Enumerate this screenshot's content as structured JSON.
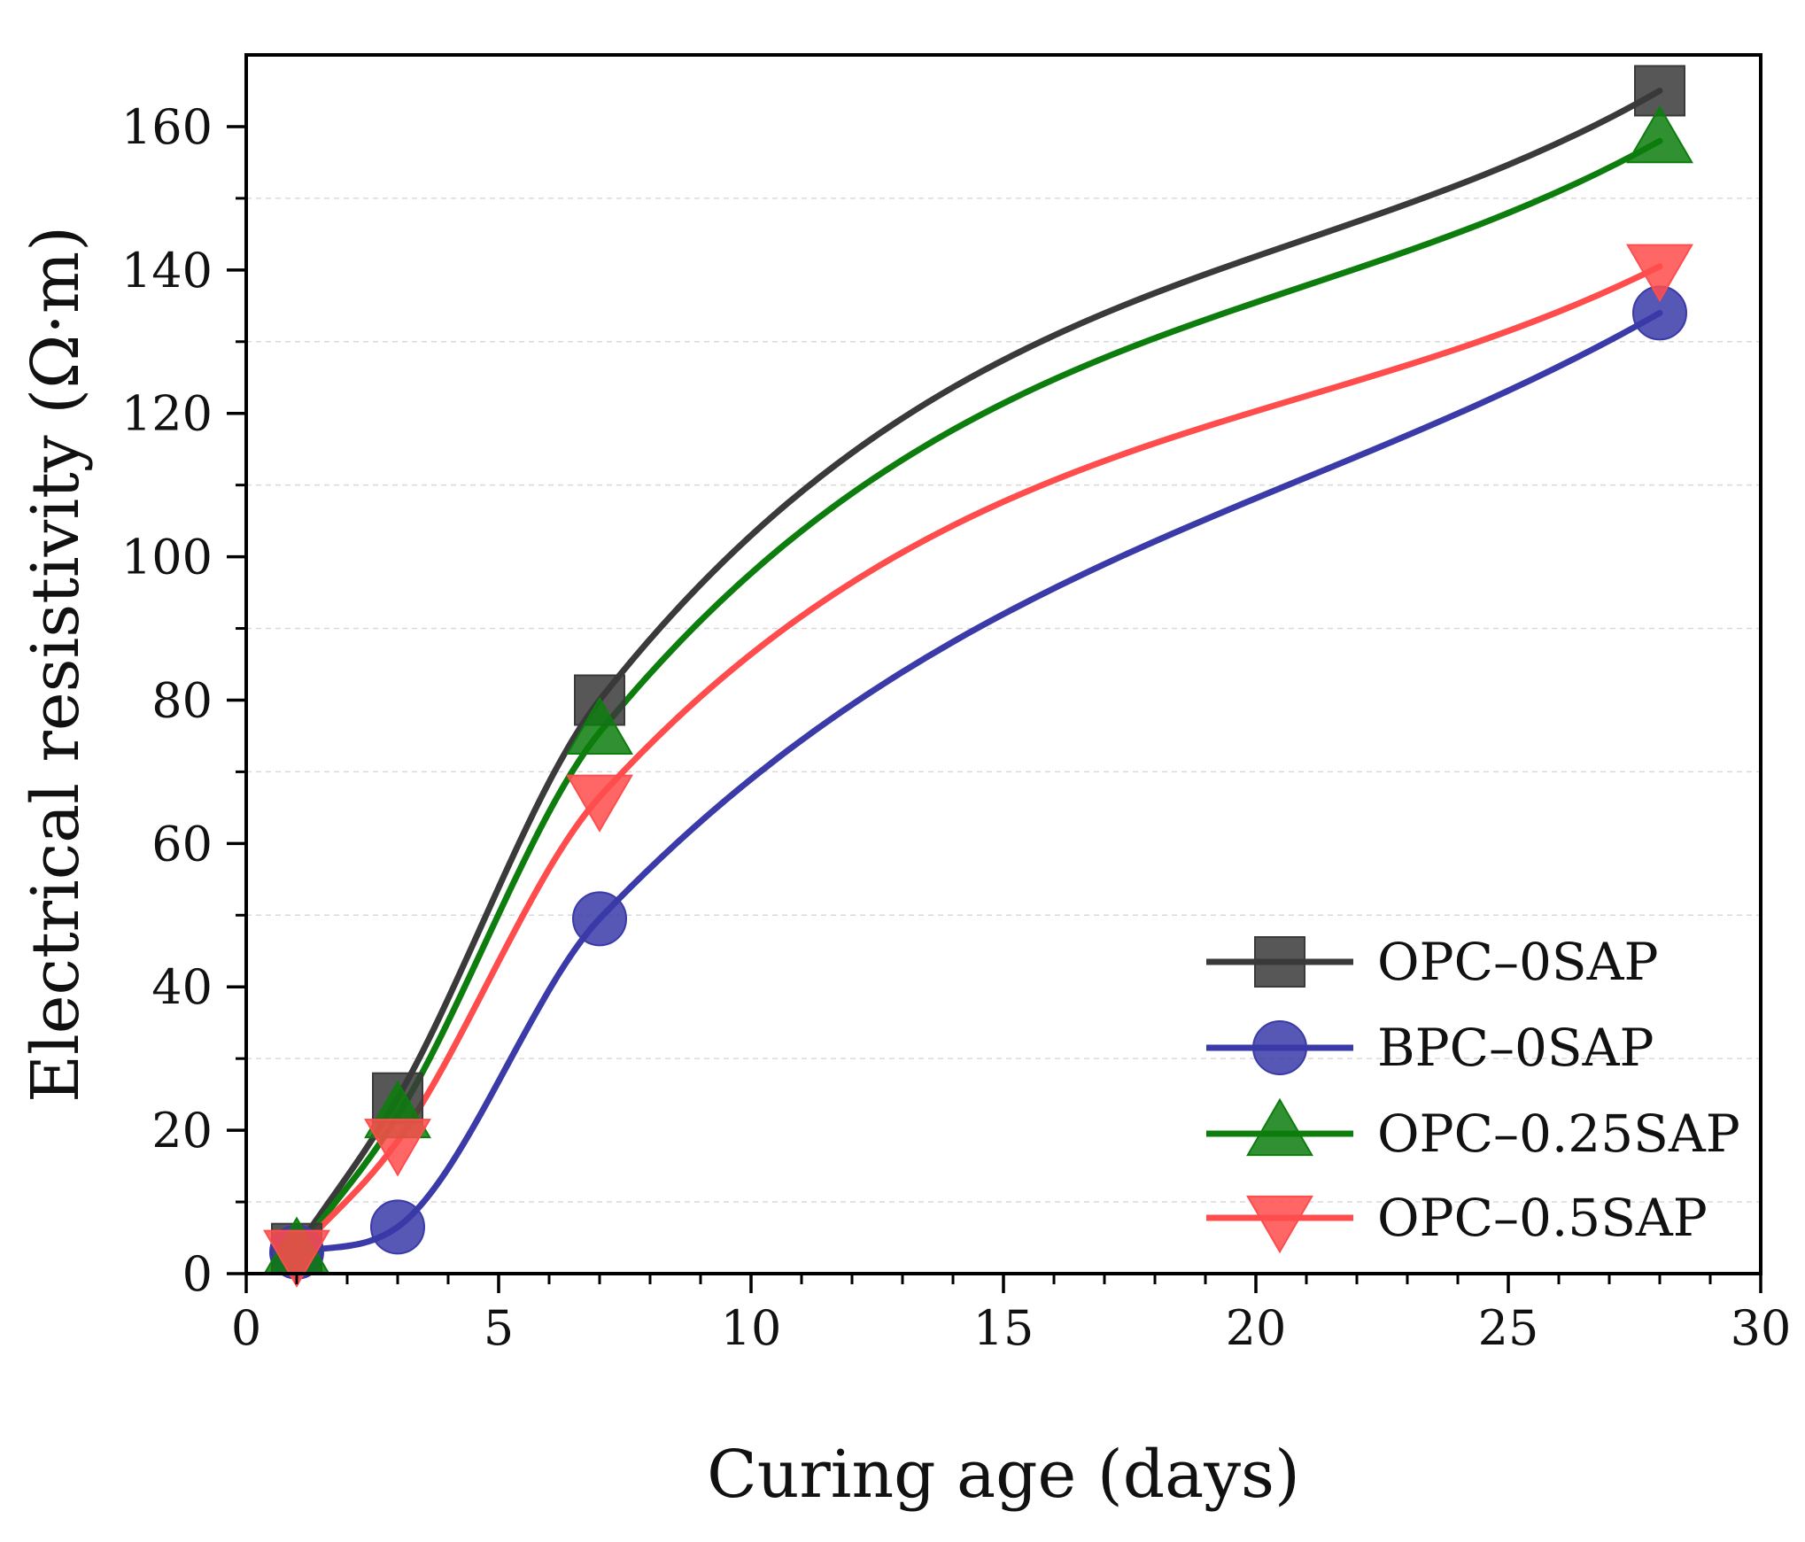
{
  "chart_data": {
    "type": "line",
    "title": "",
    "xlabel": "Curing age (days)",
    "ylabel": "Electrical resistivity (Ω·m)",
    "xlim": [
      0,
      30
    ],
    "ylim": [
      0,
      170
    ],
    "xticks": [
      0,
      5,
      10,
      15,
      20,
      25,
      30
    ],
    "yticks": [
      0,
      20,
      40,
      60,
      80,
      100,
      120,
      140,
      160
    ],
    "grid": "horizontal dashed",
    "legend_position": "bottom-right",
    "series": [
      {
        "name": "OPC–0SAP",
        "marker": "square",
        "color": "#3a3a3a",
        "x": [
          1,
          3,
          7,
          28
        ],
        "y": [
          3.5,
          24.5,
          80,
          165
        ]
      },
      {
        "name": "BPC–0SAP",
        "marker": "circle",
        "color": "#3a3aa8",
        "x": [
          1,
          3,
          7,
          28
        ],
        "y": [
          3,
          6.5,
          49.5,
          134
        ]
      },
      {
        "name": "OPC–0.25SAP",
        "marker": "triangle-up",
        "color": "#0d7d0d",
        "x": [
          1,
          3,
          7,
          28
        ],
        "y": [
          3,
          22,
          75.5,
          158
        ]
      },
      {
        "name": "OPC–0.5SAP",
        "marker": "triangle-down",
        "color": "#ff4c4c",
        "x": [
          1,
          3,
          7,
          28
        ],
        "y": [
          3,
          18.5,
          66.5,
          140.5
        ]
      }
    ]
  }
}
